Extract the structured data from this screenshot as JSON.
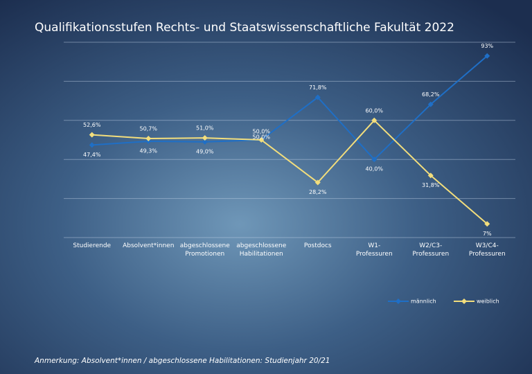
{
  "chart_data": {
    "type": "line",
    "title": "Qualifikationsstufen Rechts- und Staatswissenschaftliche Fakultät 2022",
    "categories": [
      "Studierende",
      "Absolvent*innen",
      "abgeschlossene\nPromotionen",
      "abgeschlossene\nHabilitationen",
      "Postdocs",
      "W1-\nProfessuren",
      "W2/C3-\nProfessuren",
      "W3/C4-\nProfessuren"
    ],
    "series": [
      {
        "name": "männlich",
        "color": "#1f6fc6",
        "values": [
          47.4,
          49.3,
          49.0,
          50.0,
          71.8,
          40.0,
          68.2,
          93
        ],
        "value_labels": [
          "47,4%",
          "49,3%",
          "49,0%",
          "50,0%",
          "71,8%",
          "40,0%",
          "68,2%",
          "93%"
        ]
      },
      {
        "name": "weiblich",
        "color": "#f3de7c",
        "values": [
          52.6,
          50.7,
          51.0,
          50.0,
          28.2,
          60.0,
          31.8,
          7
        ],
        "value_labels": [
          "52,6%",
          "50,7%",
          "51,0%",
          "50,0%",
          "28,2%",
          "60,0%",
          "31,8%",
          "7%"
        ]
      }
    ],
    "ylim": [
      0,
      100
    ],
    "yticks": [
      0,
      20,
      40,
      60,
      80,
      100
    ],
    "grid": true,
    "note": "Anmerkung: Absolvent*innen / abgeschlossene Habilitationen: Studienjahr 20/21"
  }
}
